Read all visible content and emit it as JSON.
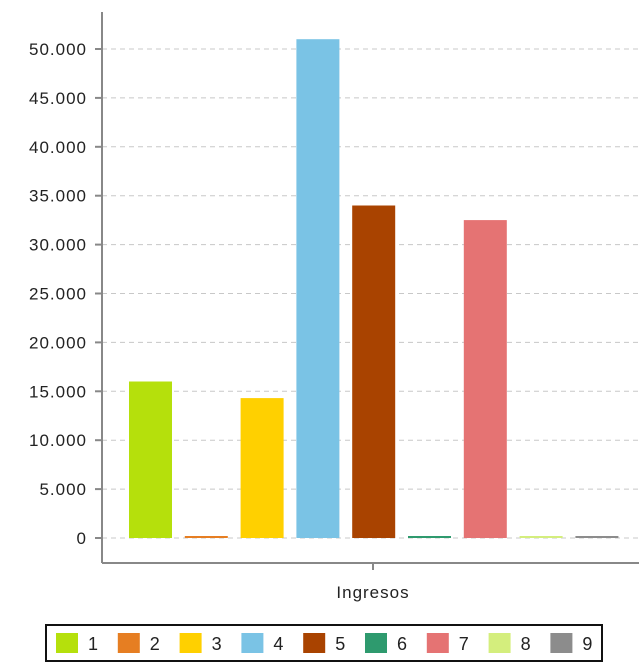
{
  "chart_data": {
    "type": "bar",
    "categories": [
      "Ingresos"
    ],
    "xlabel": "Ingresos",
    "ylabel": "",
    "ylim": [
      0,
      50000
    ],
    "yticks": [
      0,
      5000,
      10000,
      15000,
      20000,
      25000,
      30000,
      35000,
      40000,
      45000,
      50000
    ],
    "ytick_labels": [
      "0",
      "5.000",
      "10.000",
      "15.000",
      "20.000",
      "25.000",
      "30.000",
      "35.000",
      "40.000",
      "45.000",
      "50.000"
    ],
    "grid": true,
    "legend_position": "bottom",
    "series": [
      {
        "name": "1",
        "values": [
          16000
        ],
        "color": "#b5e00c"
      },
      {
        "name": "2",
        "values": [
          100
        ],
        "color": "#e67e22"
      },
      {
        "name": "3",
        "values": [
          14300
        ],
        "color": "#ffd000"
      },
      {
        "name": "4",
        "values": [
          51000
        ],
        "color": "#7ac3e5"
      },
      {
        "name": "5",
        "values": [
          34000
        ],
        "color": "#a94300"
      },
      {
        "name": "6",
        "values": [
          100
        ],
        "color": "#2e9a6e"
      },
      {
        "name": "7",
        "values": [
          32500
        ],
        "color": "#e57373"
      },
      {
        "name": "8",
        "values": [
          100
        ],
        "color": "#d4ee7d"
      },
      {
        "name": "9",
        "values": [
          100
        ],
        "color": "#8c8c8c"
      }
    ]
  }
}
